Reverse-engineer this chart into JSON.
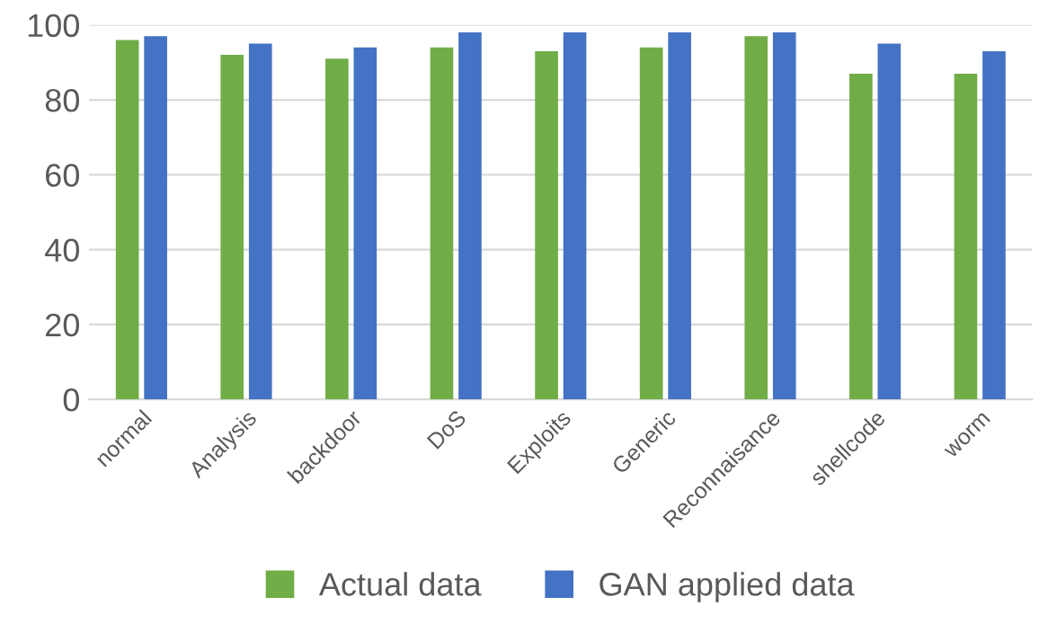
{
  "chart_data": {
    "type": "bar",
    "categories": [
      "normal",
      "Analysis",
      "backdoor",
      "DoS",
      "Exploits",
      "Generic",
      "Reconnaisance",
      "shellcode",
      "worm"
    ],
    "series": [
      {
        "name": "Actual data",
        "color": "#70ad47",
        "values": [
          96,
          92,
          91,
          94,
          93,
          94,
          97,
          87,
          87
        ]
      },
      {
        "name": "GAN applied data",
        "color": "#4472c4",
        "values": [
          97,
          95,
          94,
          98,
          98,
          98,
          98,
          95,
          93
        ]
      }
    ],
    "ylim": [
      0,
      100
    ],
    "yticks": [
      0,
      20,
      40,
      60,
      80,
      100
    ],
    "grid": "y",
    "legend": "bottom"
  }
}
